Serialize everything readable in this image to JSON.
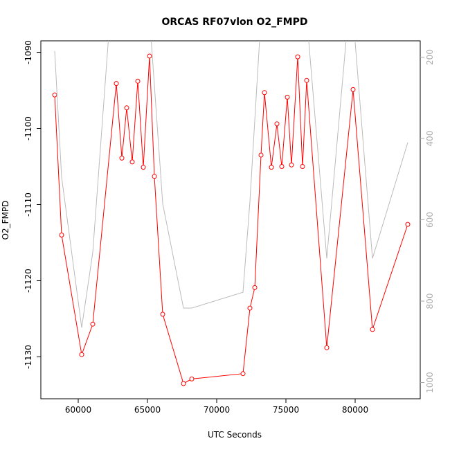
{
  "chart_data": {
    "type": "line",
    "title": "ORCAS RF07vlon O2_FMPD",
    "xlabel": "UTC Seconds",
    "ylabel": "O2_FMPD",
    "xlim": [
      57300,
      84700
    ],
    "ylim": [
      -1135.5,
      -1088.5
    ],
    "x_ticks": [
      60000,
      65000,
      70000,
      75000,
      80000
    ],
    "y_ticks": [
      -1130,
      -1120,
      -1110,
      -1100,
      -1090
    ],
    "y2lim": [
      1040,
      160
    ],
    "y2_ticks": [
      200,
      400,
      600,
      800,
      1000
    ],
    "grid": false,
    "series": [
      {
        "color": "#ff0000",
        "axis": "left",
        "markers": true,
        "x": [
          58300,
          58800,
          60250,
          61050,
          62750,
          63150,
          63500,
          63900,
          64300,
          64700,
          65150,
          65500,
          66100,
          67600,
          68200,
          71900,
          72400,
          72750,
          73200,
          73450,
          73950,
          74350,
          74700,
          75100,
          75400,
          75850,
          76200,
          76500,
          77950,
          79850,
          81250,
          83800
        ],
        "y": [
          -1095.6,
          -1114.0,
          -1129.7,
          -1125.7,
          -1094.1,
          -1103.9,
          -1097.3,
          -1104.4,
          -1093.8,
          -1105.1,
          -1090.5,
          -1106.3,
          -1124.4,
          -1133.5,
          -1132.9,
          -1132.2,
          -1123.6,
          -1120.9,
          -1103.5,
          -1095.3,
          -1105.1,
          -1099.4,
          -1105.0,
          -1095.9,
          -1104.8,
          -1090.6,
          -1105.0,
          -1093.7,
          -1128.8,
          -1094.9,
          -1126.4,
          -1112.6
        ]
      },
      {
        "color": "#bbbbbb",
        "axis": "right",
        "markers": false,
        "x": [
          58300,
          58800,
          60250,
          61050,
          62300,
          62750,
          65150,
          66100,
          67600,
          68200,
          71900,
          72400,
          73200,
          73450,
          76200,
          76500,
          77950,
          79500,
          79850,
          81250,
          83800
        ],
        "y": [
          185,
          495,
          865,
          680,
          100,
          100,
          100,
          560,
          817,
          817,
          778,
          555,
          100,
          100,
          100,
          100,
          695,
          100,
          100,
          695,
          410
        ]
      }
    ]
  }
}
